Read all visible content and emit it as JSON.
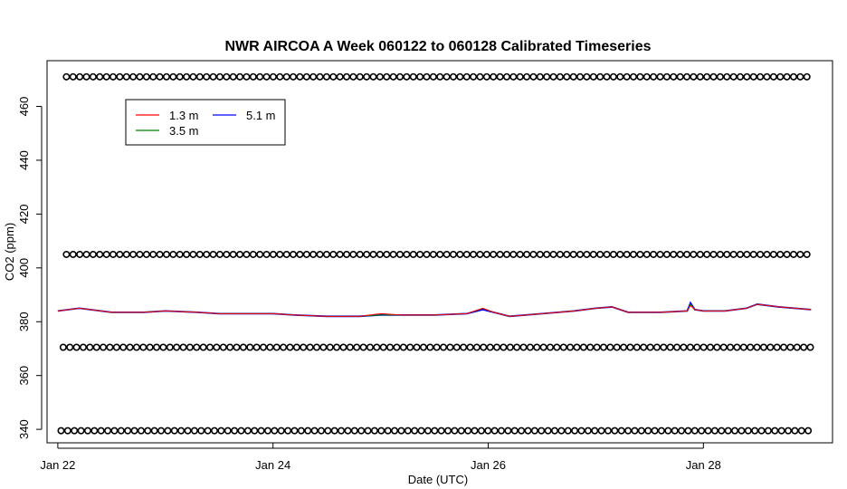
{
  "chart_data": {
    "type": "line",
    "title": "NWR AIRCOA A  Week 060122 to 060128  Calibrated Timeseries",
    "xlabel": "Date (UTC)",
    "ylabel": "CO2 (ppm)",
    "x_unit": "day of January 2006",
    "xlim": [
      21.9,
      29.2
    ],
    "ylim": [
      335,
      477
    ],
    "x_ticks": [
      22,
      24,
      26,
      28
    ],
    "x_tick_labels": [
      "Jan 22",
      "Jan 24",
      "Jan 26",
      "Jan 28"
    ],
    "y_ticks": [
      340,
      360,
      380,
      400,
      420,
      440,
      460
    ],
    "y_tick_labels": [
      "340",
      "360",
      "380",
      "400",
      "420",
      "440",
      "460"
    ],
    "grid": false,
    "legend": {
      "placement": "top-left",
      "entries": [
        {
          "label": "1.3 m",
          "color": "#ff0000"
        },
        {
          "label": "3.5 m",
          "color": "#008000"
        },
        {
          "label": "5.1 m",
          "color": "#0000ff"
        }
      ]
    },
    "series": [
      {
        "name": "5.1 m",
        "color": "#0000ff",
        "x": [
          22.0,
          22.2,
          22.4,
          22.5,
          22.8,
          23.0,
          23.3,
          23.5,
          23.8,
          24.0,
          24.2,
          24.5,
          24.8,
          25.0,
          25.2,
          25.5,
          25.8,
          25.95,
          26.05,
          26.2,
          26.5,
          26.8,
          27.0,
          27.15,
          27.3,
          27.6,
          27.85,
          27.88,
          27.92,
          28.0,
          28.2,
          28.4,
          28.5,
          28.7,
          29.0
        ],
        "y": [
          384,
          385,
          384,
          383.5,
          383.5,
          384,
          383.5,
          383,
          383,
          383,
          382.5,
          382,
          382,
          382.5,
          382.5,
          382.5,
          383,
          384.5,
          383.5,
          382,
          383,
          384,
          385,
          385.5,
          383.5,
          383.5,
          384,
          387,
          384.5,
          384,
          384,
          385,
          386.5,
          385.5,
          384.5
        ]
      },
      {
        "name": "3.5 m",
        "color": "#008000",
        "x": [
          22.0,
          22.2,
          22.4,
          22.5,
          22.8,
          23.0,
          23.3,
          23.5,
          23.8,
          24.0,
          24.2,
          24.5,
          24.8,
          25.0,
          25.2,
          25.5,
          25.8,
          25.95,
          26.05,
          26.2,
          26.5,
          26.8,
          27.0,
          27.15,
          27.3,
          27.6,
          27.85,
          27.88,
          27.92,
          28.0,
          28.2,
          28.4,
          28.5,
          28.7,
          29.0
        ],
        "y": [
          384,
          385,
          384,
          383.5,
          383.5,
          384,
          383.5,
          383,
          383,
          383,
          382.5,
          382,
          382,
          382.5,
          382.5,
          382.5,
          383,
          385,
          383.5,
          382,
          383,
          384,
          385,
          385.5,
          383.5,
          383.5,
          384,
          386.5,
          384.5,
          384,
          384,
          385,
          386.5,
          385.5,
          384.5
        ]
      },
      {
        "name": "1.3 m",
        "color": "#ff0000",
        "x": [
          22.0,
          22.2,
          22.4,
          22.5,
          22.8,
          23.0,
          23.3,
          23.5,
          23.8,
          24.0,
          24.2,
          24.5,
          24.8,
          25.0,
          25.2,
          25.5,
          25.8,
          25.95,
          26.05,
          26.2,
          26.5,
          26.8,
          27.0,
          27.15,
          27.3,
          27.6,
          27.85,
          27.88,
          27.92,
          28.0,
          28.2,
          28.4,
          28.5,
          28.7,
          29.0
        ],
        "y": [
          384,
          385,
          384,
          383.5,
          383.5,
          384,
          383.5,
          383,
          383,
          383,
          382.5,
          382,
          382,
          383,
          382.5,
          382.5,
          383,
          385,
          383.5,
          382,
          383,
          384,
          385,
          385.5,
          383.5,
          383.5,
          384,
          386,
          384.5,
          384,
          384,
          385,
          386.5,
          385.5,
          384.5
        ]
      }
    ],
    "reference_levels": [
      {
        "y": 471,
        "x_start": 22.08,
        "x_end": 29.0,
        "step": 0.062
      },
      {
        "y": 405,
        "x_start": 22.08,
        "x_end": 29.0,
        "step": 0.062
      },
      {
        "y": 370.5,
        "x_start": 22.05,
        "x_end": 29.0,
        "step": 0.062
      },
      {
        "y": 339.5,
        "x_start": 22.03,
        "x_end": 29.0,
        "step": 0.062
      }
    ]
  }
}
